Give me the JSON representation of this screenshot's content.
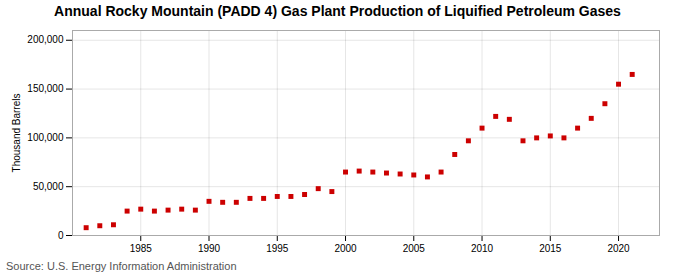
{
  "chart_data": {
    "type": "scatter",
    "title": "Annual Rocky Mountain (PADD 4) Gas Plant Production of Liquified Petroleum Gases",
    "ylabel": "Thousand Barrels",
    "source": "Source: U.S. Energy Information Administration",
    "x": [
      1981,
      1982,
      1983,
      1984,
      1985,
      1986,
      1987,
      1988,
      1989,
      1990,
      1991,
      1992,
      1993,
      1994,
      1995,
      1996,
      1997,
      1998,
      1999,
      2000,
      2001,
      2002,
      2003,
      2004,
      2005,
      2006,
      2007,
      2008,
      2009,
      2010,
      2011,
      2012,
      2013,
      2014,
      2015,
      2016,
      2017,
      2018,
      2019,
      2020,
      2021
    ],
    "values": [
      8000,
      10000,
      11000,
      25000,
      27000,
      25000,
      26000,
      27000,
      26000,
      35000,
      34000,
      34000,
      38000,
      38000,
      40000,
      40000,
      42000,
      48000,
      45000,
      65000,
      66000,
      65000,
      64000,
      63000,
      62000,
      60000,
      65000,
      83000,
      97000,
      110000,
      122000,
      119000,
      97000,
      100000,
      102000,
      100000,
      110000,
      120000,
      135000,
      155000,
      165000
    ],
    "color": "#cc0000",
    "marker": "square",
    "xlim": [
      1980,
      2023
    ],
    "xticks": [
      1985,
      1990,
      1995,
      2000,
      2005,
      2010,
      2015,
      2020
    ],
    "ylim": [
      0,
      210000
    ],
    "yticks": [
      0,
      {
        "value": 50000,
        "label": "50,000"
      },
      {
        "value": 100000,
        "label": "100,000"
      },
      {
        "value": 150000,
        "label": "150,000"
      },
      {
        "value": 200000,
        "label": "200,000"
      }
    ],
    "grid": true
  }
}
